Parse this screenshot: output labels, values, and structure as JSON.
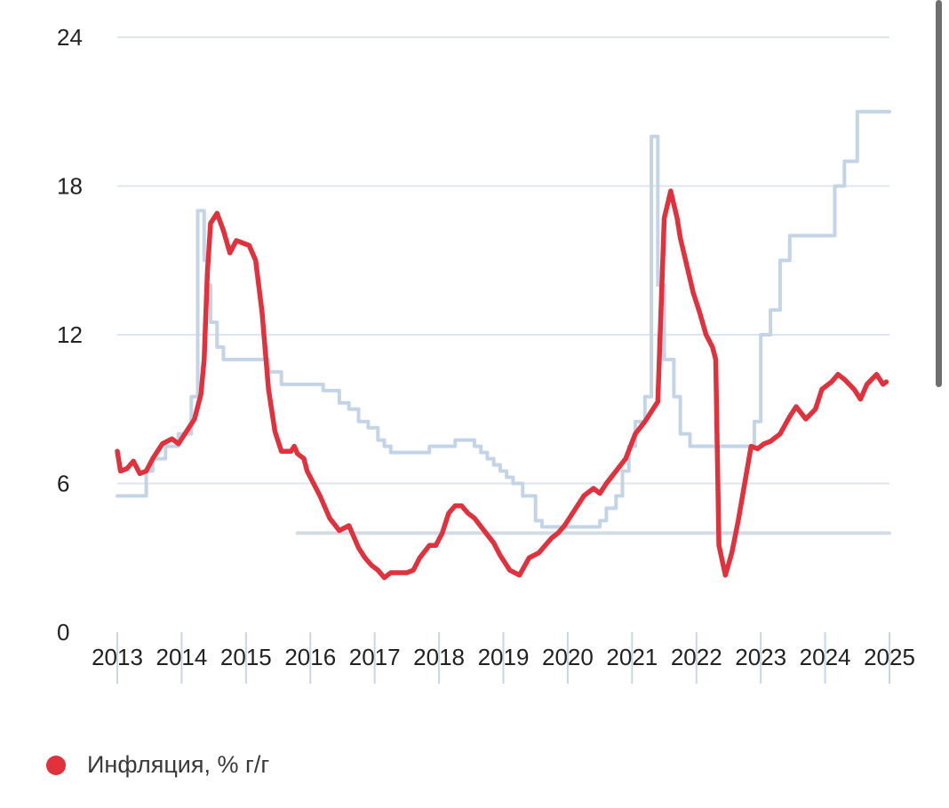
{
  "chart_data": {
    "type": "line",
    "ylim": [
      0,
      24
    ],
    "y_ticks": [
      0,
      6,
      12,
      18,
      24
    ],
    "x_range": [
      2013.0,
      2025.0
    ],
    "x_ticks": [
      "2013",
      "2014",
      "2015",
      "2016",
      "2017",
      "2018",
      "2019",
      "2020",
      "2021",
      "2022",
      "2023",
      "2024",
      "2025"
    ],
    "grid": "horizontal",
    "series": [
      {
        "name": "Инфляция, % г/г",
        "color": "#e0313c",
        "x": [
          2013.0,
          2013.05,
          2013.15,
          2013.25,
          2013.35,
          2013.45,
          2013.55,
          2013.7,
          2013.85,
          2013.95,
          2014.1,
          2014.2,
          2014.3,
          2014.35,
          2014.4,
          2014.45,
          2014.55,
          2014.65,
          2014.75,
          2014.85,
          2014.95,
          2015.05,
          2015.15,
          2015.25,
          2015.35,
          2015.45,
          2015.55,
          2015.65,
          2015.7,
          2015.75,
          2015.8,
          2015.9,
          2015.95,
          2016.05,
          2016.15,
          2016.3,
          2016.45,
          2016.6,
          2016.75,
          2016.85,
          2016.95,
          2017.05,
          2017.15,
          2017.25,
          2017.4,
          2017.5,
          2017.6,
          2017.7,
          2017.85,
          2017.95,
          2018.05,
          2018.15,
          2018.25,
          2018.35,
          2018.45,
          2018.55,
          2018.7,
          2018.85,
          2018.95,
          2019.1,
          2019.25,
          2019.4,
          2019.55,
          2019.65,
          2019.75,
          2019.85,
          2019.95,
          2020.1,
          2020.25,
          2020.4,
          2020.5,
          2020.6,
          2020.75,
          2020.9,
          2021.05,
          2021.2,
          2021.3,
          2021.4,
          2021.5,
          2021.6,
          2021.7,
          2021.75,
          2021.85,
          2021.95,
          2022.05,
          2022.15,
          2022.25,
          2022.3,
          2022.35,
          2022.45,
          2022.55,
          2022.65,
          2022.75,
          2022.85,
          2022.95,
          2023.05,
          2023.15,
          2023.3,
          2023.45,
          2023.55,
          2023.7,
          2023.85,
          2023.95,
          2024.1,
          2024.2,
          2024.3,
          2024.45,
          2024.55,
          2024.65,
          2024.8,
          2024.9,
          2024.95
        ],
        "values": [
          7.3,
          6.5,
          6.6,
          6.9,
          6.4,
          6.5,
          7.0,
          7.6,
          7.8,
          7.6,
          8.2,
          8.6,
          9.6,
          11.0,
          14.5,
          16.5,
          16.9,
          16.2,
          15.3,
          15.8,
          15.7,
          15.6,
          15.0,
          12.9,
          9.8,
          8.1,
          7.3,
          7.3,
          7.3,
          7.5,
          7.2,
          7.0,
          6.5,
          6.0,
          5.5,
          4.6,
          4.1,
          4.3,
          3.4,
          3.0,
          2.7,
          2.5,
          2.2,
          2.4,
          2.4,
          2.4,
          2.5,
          3.0,
          3.5,
          3.5,
          4.0,
          4.8,
          5.1,
          5.1,
          4.8,
          4.6,
          4.1,
          3.6,
          3.1,
          2.5,
          2.3,
          3.0,
          3.2,
          3.5,
          3.8,
          4.0,
          4.3,
          4.9,
          5.5,
          5.8,
          5.6,
          6.0,
          6.5,
          7.0,
          8.0,
          8.5,
          8.9,
          9.3,
          16.7,
          17.8,
          16.7,
          15.9,
          14.8,
          13.7,
          12.9,
          12.0,
          11.5,
          11.0,
          3.5,
          2.3,
          3.2,
          4.5,
          6.0,
          7.5,
          7.4,
          7.6,
          7.7,
          8.0,
          8.7,
          9.1,
          8.6,
          9.0,
          9.8,
          10.1,
          10.4,
          10.2,
          9.8,
          9.4,
          10.0,
          10.4,
          10.0,
          10.1
        ]
      },
      {
        "name": "",
        "color": "#c4d4e7",
        "step": true,
        "x": [
          2013.0,
          2013.4,
          2013.45,
          2013.55,
          2013.75,
          2013.95,
          2014.15,
          2014.25,
          2014.35,
          2014.4,
          2014.45,
          2014.55,
          2014.65,
          2014.75,
          2014.85,
          2015.0,
          2015.1,
          2015.25,
          2015.35,
          2015.45,
          2015.55,
          2015.65,
          2015.8,
          2015.9,
          2016.0,
          2016.2,
          2016.45,
          2016.6,
          2016.75,
          2016.9,
          2017.05,
          2017.15,
          2017.25,
          2017.4,
          2017.6,
          2017.85,
          2018.0,
          2018.25,
          2018.45,
          2018.55,
          2018.65,
          2018.75,
          2018.85,
          2018.95,
          2019.05,
          2019.15,
          2019.3,
          2019.5,
          2019.6,
          2019.75,
          2019.95,
          2020.1,
          2020.3,
          2020.5,
          2020.6,
          2020.75,
          2020.85,
          2020.95,
          2021.05,
          2021.2,
          2021.3,
          2021.4,
          2021.5,
          2021.65,
          2021.75,
          2021.9,
          2022.05,
          2022.25,
          2022.4,
          2022.55,
          2022.75,
          2022.9,
          2023.0,
          2023.15,
          2023.3,
          2023.45,
          2023.55,
          2023.7,
          2023.85,
          2024.0,
          2024.15,
          2024.3,
          2024.5,
          2024.65,
          2024.95
        ],
        "values": [
          5.5,
          5.5,
          6.5,
          7.0,
          7.5,
          8.0,
          9.5,
          17.0,
          15.0,
          14.0,
          12.5,
          11.5,
          11.0,
          11.0,
          11.0,
          11.0,
          11.0,
          11.0,
          10.5,
          10.5,
          10.0,
          10.0,
          10.0,
          10.0,
          10.0,
          9.75,
          9.25,
          9.0,
          8.5,
          8.25,
          7.75,
          7.5,
          7.25,
          7.25,
          7.25,
          7.5,
          7.5,
          7.75,
          7.75,
          7.5,
          7.25,
          7.0,
          6.75,
          6.5,
          6.25,
          6.0,
          5.5,
          4.5,
          4.25,
          4.25,
          4.25,
          4.25,
          4.25,
          4.5,
          5.0,
          5.5,
          6.5,
          7.5,
          8.5,
          9.5,
          20.0,
          14.0,
          11.0,
          9.5,
          8.0,
          7.5,
          7.5,
          7.5,
          7.5,
          7.5,
          7.5,
          8.5,
          12.0,
          13.0,
          15.0,
          16.0,
          16.0,
          16.0,
          16.0,
          16.0,
          18.0,
          19.0,
          21.0,
          21.0,
          21.0
        ]
      },
      {
        "name": "",
        "color": "#d3dbe4",
        "x": [
          2015.8,
          2025.0
        ],
        "values": [
          4.0,
          4.0
        ]
      }
    ],
    "legend": "bottom-left"
  },
  "legend": {
    "items": [
      {
        "label": "Инфляция, % г/г",
        "color": "#e0313c"
      }
    ]
  }
}
